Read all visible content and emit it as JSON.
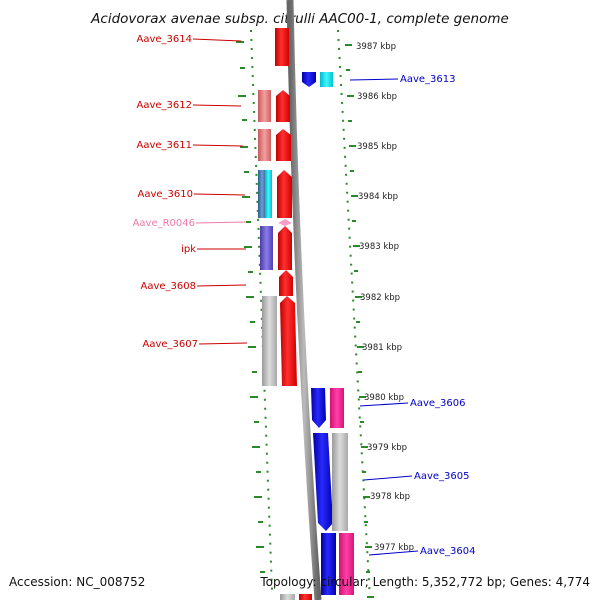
{
  "title": "Acidovorax avenae subsp. citrulli AAC00-1, complete genome",
  "footer": {
    "accession": "Accession: NC_008752",
    "summary": "Topology: circular; Length: 5,352,772 bp; Genes: 4,774"
  },
  "colors": {
    "track_gray": "#888888",
    "tick_green": "#2a8a2a",
    "left_label": "#cc0000",
    "right_label": "#0000cc",
    "rna_label": "#f07aa8",
    "gene_red": "#ff0000",
    "gene_blue": "#0000ee",
    "gene_cyan": "#00e5ee",
    "gene_pink": "#ff1493",
    "gene_gray": "#b8b8b8",
    "gene_salmon": "#e87878",
    "gene_steel": "#4a7fb0",
    "gene_purple": "#6a5acd"
  },
  "kbp_labels": [
    "3987 kbp",
    "3986 kbp",
    "3985 kbp",
    "3984 kbp",
    "3983 kbp",
    "3982 kbp",
    "3981 kbp",
    "3980 kbp",
    "3979 kbp",
    "3978 kbp",
    "3977 kbp"
  ],
  "genes_left": [
    {
      "name": "Aave_3614",
      "type": "gene"
    },
    {
      "name": "Aave_3612",
      "type": "gene"
    },
    {
      "name": "Aave_3611",
      "type": "gene"
    },
    {
      "name": "Aave_3610",
      "type": "gene"
    },
    {
      "name": "Aave_R0046",
      "type": "rna"
    },
    {
      "name": "ipk",
      "type": "gene"
    },
    {
      "name": "Aave_3608",
      "type": "gene"
    },
    {
      "name": "Aave_3607",
      "type": "gene"
    }
  ],
  "genes_right": [
    {
      "name": "Aave_3613"
    },
    {
      "name": "Aave_3606"
    },
    {
      "name": "Aave_3605"
    },
    {
      "name": "Aave_3604"
    }
  ]
}
